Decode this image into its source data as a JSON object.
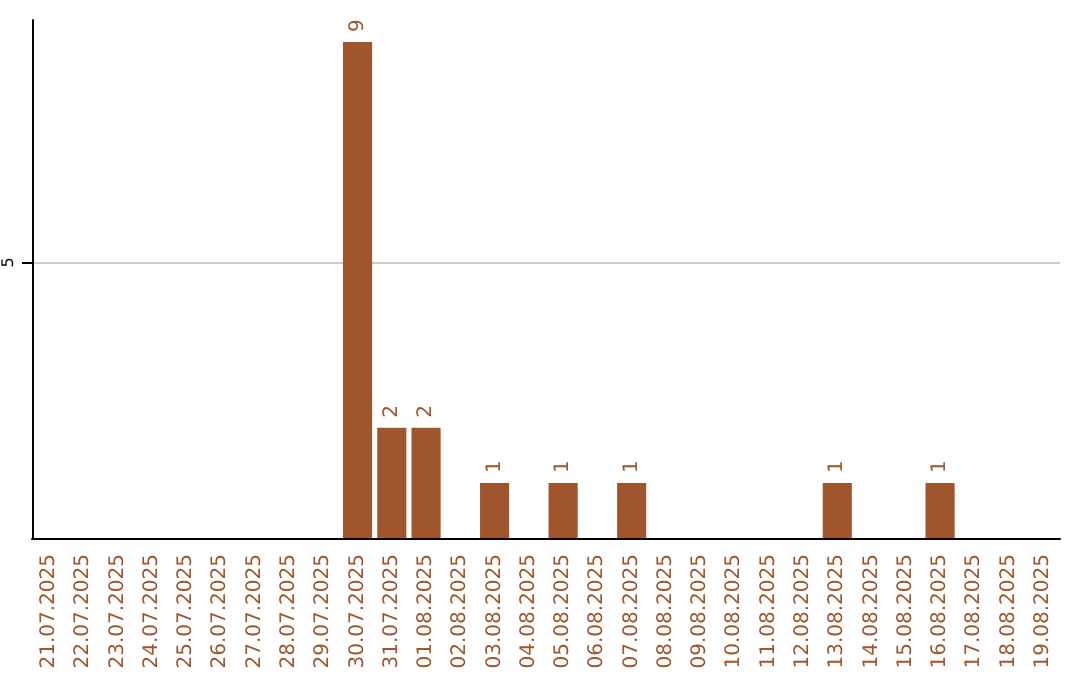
{
  "chart_data": {
    "type": "bar",
    "categories": [
      "21.07.2025",
      "22.07.2025",
      "23.07.2025",
      "24.07.2025",
      "25.07.2025",
      "26.07.2025",
      "27.07.2025",
      "28.07.2025",
      "29.07.2025",
      "30.07.2025",
      "31.07.2025",
      "01.08.2025",
      "02.08.2025",
      "03.08.2025",
      "04.08.2025",
      "05.08.2025",
      "06.08.2025",
      "07.08.2025",
      "08.08.2025",
      "09.08.2025",
      "10.08.2025",
      "11.08.2025",
      "12.08.2025",
      "13.08.2025",
      "14.08.2025",
      "15.08.2025",
      "16.08.2025",
      "17.08.2025",
      "18.08.2025",
      "19.08.2025"
    ],
    "values": [
      0,
      0,
      0,
      0,
      0,
      0,
      0,
      0,
      0,
      9,
      2,
      2,
      0,
      1,
      0,
      1,
      0,
      1,
      0,
      0,
      0,
      0,
      0,
      1,
      0,
      0,
      1,
      0,
      0,
      0
    ],
    "value_labels": [
      null,
      null,
      null,
      null,
      null,
      null,
      null,
      null,
      null,
      "9",
      "2",
      "2",
      null,
      "1",
      null,
      "1",
      null,
      "1",
      null,
      null,
      null,
      null,
      null,
      "1",
      null,
      null,
      "1",
      null,
      null,
      null
    ],
    "color": "#a0562c",
    "ylim": [
      0,
      9.4
    ],
    "yticks": [
      5
    ],
    "grid": "y"
  }
}
